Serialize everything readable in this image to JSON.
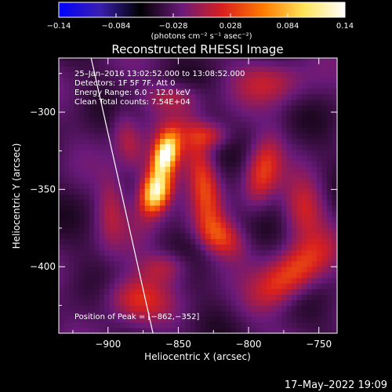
{
  "colorbar": {
    "ticks": [
      "−0.14",
      "−0.084",
      "−0.028",
      "0.028",
      "0.084",
      "0.14"
    ],
    "tick_values": [
      -0.14,
      -0.084,
      -0.028,
      0.028,
      0.084,
      0.14
    ],
    "range": [
      -0.14,
      0.14
    ],
    "unit_label": "(photons cm⁻² s⁻¹ asec⁻²)",
    "colormap_stops": [
      "#0000ff",
      "#3a1fb0",
      "#000000",
      "#6a1a7a",
      "#d81f1f",
      "#ff7a00",
      "#ffe45a",
      "#ffffff"
    ]
  },
  "chart_data": {
    "type": "heatmap",
    "title": "Reconstructed RHESSI Image",
    "xlabel": "Heliocentric X (arcsec)",
    "ylabel": "Heliocentric Y (arcsec)",
    "xlim": [
      -935,
      -737
    ],
    "ylim": [
      -443,
      -265
    ],
    "x_ticks": [
      -900,
      -850,
      -800,
      -750
    ],
    "y_ticks": [
      -300,
      -350,
      -400
    ],
    "x_tick_labels": [
      "−900",
      "−850",
      "−800",
      "−750"
    ],
    "y_tick_labels": [
      "−300",
      "−350",
      "−400"
    ],
    "annotations": [
      "25–Jan–2016 13:02:52.000 to 13:08:52.000",
      "Detectors: 1F 5F 7F, Att 0",
      "Energy Range: 6.0 – 12.0 keV",
      "Clean    Total counts: 7.54E+04"
    ],
    "peak_label": "Position of Peak = [−862,−352]",
    "peak": [
      -862,
      -352
    ],
    "solar_limb": [
      [
        -912,
        -265
      ],
      [
        -868,
        -443
      ]
    ],
    "sources": [
      {
        "x": -859,
        "y": -327,
        "sx": 5,
        "sy": 9,
        "amp": 1.0,
        "angle": 20
      },
      {
        "x": -866,
        "y": -351,
        "sx": 6,
        "sy": 9,
        "amp": 1.0,
        "angle": 20
      },
      {
        "x": -862,
        "y": -338,
        "sx": 10,
        "sy": 24,
        "amp": 0.4,
        "angle": 20
      },
      {
        "x": -832,
        "y": -345,
        "sx": 7,
        "sy": 22,
        "amp": 0.45,
        "angle": -10
      },
      {
        "x": -886,
        "y": -318,
        "sx": 7,
        "sy": 14,
        "amp": 0.3,
        "angle": -15
      },
      {
        "x": -898,
        "y": -362,
        "sx": 7,
        "sy": 16,
        "amp": 0.25,
        "angle": 0
      },
      {
        "x": -828,
        "y": -315,
        "sx": 10,
        "sy": 6,
        "amp": 0.35,
        "angle": 0
      },
      {
        "x": -820,
        "y": -380,
        "sx": 12,
        "sy": 8,
        "amp": 0.45,
        "angle": 30
      },
      {
        "x": -790,
        "y": -338,
        "sx": 8,
        "sy": 16,
        "amp": 0.45,
        "angle": 15
      },
      {
        "x": -770,
        "y": -405,
        "sx": 22,
        "sy": 10,
        "amp": 0.55,
        "angle": -35
      },
      {
        "x": -760,
        "y": -362,
        "sx": 10,
        "sy": 14,
        "amp": 0.35,
        "angle": 0
      },
      {
        "x": -880,
        "y": -420,
        "sx": 16,
        "sy": 10,
        "amp": 0.4,
        "angle": 0
      },
      {
        "x": -785,
        "y": -280,
        "sx": 18,
        "sy": 10,
        "amp": 0.3,
        "angle": 0
      },
      {
        "x": -855,
        "y": -290,
        "sx": 14,
        "sy": 6,
        "amp": 0.25,
        "angle": 0
      },
      {
        "x": -860,
        "y": -400,
        "sx": 12,
        "sy": 7,
        "amp": 0.3,
        "angle": 0
      }
    ]
  },
  "footer": {
    "timestamp": "17–May–2022 19:09"
  }
}
